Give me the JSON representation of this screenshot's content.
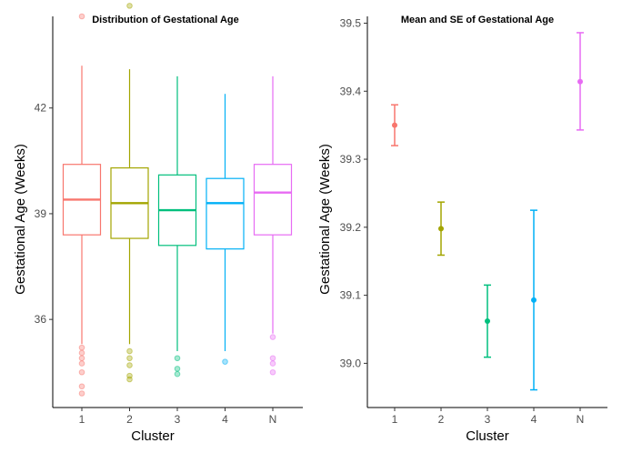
{
  "chart_data": [
    {
      "type": "boxplot",
      "title": "Distribution of Gestational Age",
      "xlabel": "Cluster",
      "ylabel": "Gestational Age (Weeks)",
      "categories": [
        "1",
        "2",
        "3",
        "4",
        "N"
      ],
      "colors": [
        "#F8766D",
        "#A3A500",
        "#00BF7D",
        "#00B0F6",
        "#E76BF3"
      ],
      "yticks": [
        36,
        39,
        42
      ],
      "ylim": [
        33.5,
        44.6
      ],
      "grid": false,
      "series": [
        {
          "category": "1",
          "whisker_low": 35.3,
          "q1": 38.4,
          "median": 39.4,
          "q3": 40.4,
          "whisker_high": 43.2,
          "outliers": [
            44.6,
            35.2,
            35.05,
            34.9,
            34.75,
            34.5,
            34.1,
            33.9
          ]
        },
        {
          "category": "2",
          "whisker_low": 35.3,
          "q1": 38.3,
          "median": 39.3,
          "q3": 40.3,
          "whisker_high": 43.1,
          "outliers": [
            44.9,
            35.1,
            34.9,
            34.7,
            34.4,
            34.3
          ]
        },
        {
          "category": "3",
          "whisker_low": 35.1,
          "q1": 38.1,
          "median": 39.1,
          "q3": 40.1,
          "whisker_high": 42.9,
          "outliers": [
            34.9,
            34.6,
            34.45
          ]
        },
        {
          "category": "4",
          "whisker_low": 35.1,
          "q1": 38.0,
          "median": 39.3,
          "q3": 40.0,
          "whisker_high": 42.4,
          "outliers": [
            34.8
          ]
        },
        {
          "category": "N",
          "whisker_low": 35.6,
          "q1": 38.4,
          "median": 39.6,
          "q3": 40.4,
          "whisker_high": 42.9,
          "outliers": [
            35.5,
            34.9,
            34.75,
            34.5
          ]
        }
      ]
    },
    {
      "type": "errorbar",
      "title": "Mean and SE of Gestational Age",
      "xlabel": "Cluster",
      "ylabel": "Gestational Age (Weeks)",
      "categories": [
        "1",
        "2",
        "3",
        "4",
        "N"
      ],
      "colors": [
        "#F8766D",
        "#A3A500",
        "#00BF7D",
        "#00B0F6",
        "#E76BF3"
      ],
      "yticks": [
        39.0,
        39.1,
        39.2,
        39.3,
        39.4,
        39.5
      ],
      "ytick_labels": [
        "39.0",
        "39.1",
        "39.2",
        "39.3",
        "39.4",
        "39.5"
      ],
      "ylim": [
        38.935,
        39.51
      ],
      "grid": false,
      "series": [
        {
          "category": "1",
          "mean": 39.35,
          "low": 39.32,
          "high": 39.38
        },
        {
          "category": "2",
          "mean": 39.198,
          "low": 39.159,
          "high": 39.237
        },
        {
          "category": "3",
          "mean": 39.062,
          "low": 39.009,
          "high": 39.115
        },
        {
          "category": "4",
          "mean": 39.093,
          "low": 38.961,
          "high": 39.225
        },
        {
          "category": "N",
          "mean": 39.414,
          "low": 39.343,
          "high": 39.486
        }
      ]
    }
  ]
}
